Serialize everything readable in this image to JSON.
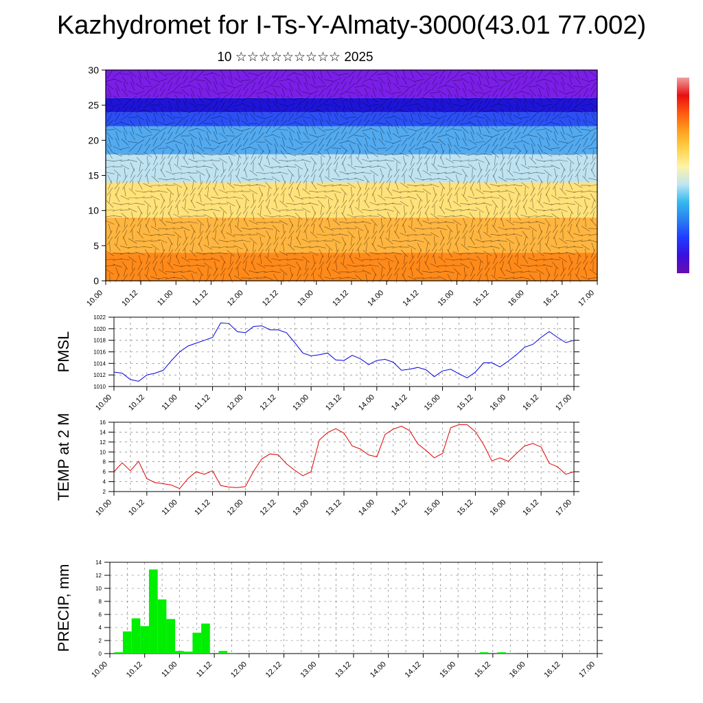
{
  "title": "Kazhydromet for I-Ts-Y-Almaty-3000(43.01 77.002)",
  "subtitle": "10 ☆☆☆☆☆☆☆☆☆ 2025",
  "time_labels": [
    "10.00",
    "10.12",
    "11.00",
    "11.12",
    "12.00",
    "12.12",
    "13.00",
    "13.12",
    "14.00",
    "14.12",
    "15.00",
    "15.12",
    "16.00",
    "16.12",
    "17.00"
  ],
  "colorbar_colors": [
    "#6a0dad",
    "#3a10e0",
    "#1f3cff",
    "#2a7ff0",
    "#35b8ef",
    "#bfe6f2",
    "#fff3a8",
    "#ffd24a",
    "#ffa020",
    "#ff5a10",
    "#e81010",
    "#f0a0a0"
  ],
  "chart_data": [
    {
      "type": "heatmap",
      "name": "cross_section",
      "ylim": [
        0,
        30
      ],
      "y_ticks": [
        0,
        5,
        10,
        15,
        20,
        25,
        30
      ],
      "x_tick_labels_ref": "time_labels",
      "bands": [
        {
          "z": [
            0,
            4
          ],
          "color": "#ff8a1a"
        },
        {
          "z": [
            4,
            9
          ],
          "color": "#ffb640"
        },
        {
          "z": [
            9,
            14
          ],
          "color": "#ffe27a"
        },
        {
          "z": [
            14,
            18
          ],
          "color": "#bfe3f0"
        },
        {
          "z": [
            18,
            22
          ],
          "color": "#52aaf0"
        },
        {
          "z": [
            22,
            24
          ],
          "color": "#2a50f5"
        },
        {
          "z": [
            24,
            26
          ],
          "color": "#1e14d8"
        },
        {
          "z": [
            26,
            30
          ],
          "color": "#7a1ee8"
        }
      ]
    },
    {
      "type": "line",
      "name": "PMSL",
      "ylabel": "PMSL",
      "color": "#0000dd",
      "ylim": [
        1010,
        1022
      ],
      "y_ticks": [
        1010,
        1012,
        1014,
        1016,
        1018,
        1020,
        1022
      ],
      "x_tick_labels_ref": "time_labels",
      "x": [
        0,
        0.125,
        0.25,
        0.375,
        0.5,
        0.625,
        0.75,
        0.875,
        1,
        1.125,
        1.25,
        1.375,
        1.5,
        1.625,
        1.75,
        1.875,
        2,
        2.125,
        2.25,
        2.375,
        2.5,
        2.625,
        2.75,
        2.875,
        3,
        3.125,
        3.25,
        3.375,
        3.5,
        3.625,
        3.75,
        3.875,
        4,
        4.125,
        4.25,
        4.375,
        4.5,
        4.625,
        4.75,
        4.875,
        5,
        5.125,
        5.25,
        5.375,
        5.5,
        5.625,
        5.75,
        5.875,
        6,
        6.125,
        6.25,
        6.375,
        6.5,
        6.625,
        6.75,
        6.875,
        7
      ],
      "values": [
        1012.5,
        1012.3,
        1011.2,
        1010.9,
        1012.0,
        1012.3,
        1012.8,
        1014.5,
        1016.0,
        1017.0,
        1017.5,
        1018.0,
        1018.5,
        1021.0,
        1020.9,
        1019.5,
        1019.3,
        1020.4,
        1020.5,
        1019.8,
        1019.8,
        1019.3,
        1017.6,
        1015.8,
        1015.3,
        1015.5,
        1015.8,
        1014.6,
        1014.5,
        1015.4,
        1014.8,
        1013.8,
        1014.5,
        1014.7,
        1014.2,
        1012.8,
        1013.0,
        1013.3,
        1012.9,
        1011.7,
        1012.7,
        1013.0,
        1012.2,
        1011.5,
        1012.5,
        1014.1,
        1014.1,
        1013.4,
        1014.4,
        1015.5,
        1016.8,
        1017.3,
        1018.5,
        1019.5,
        1018.5,
        1017.6,
        1018.0
      ]
    },
    {
      "type": "line",
      "name": "TEMP",
      "ylabel": "TEMP at 2 M",
      "color": "#dd0000",
      "ylim": [
        2,
        16
      ],
      "y_ticks": [
        2,
        4,
        6,
        8,
        10,
        12,
        14,
        16
      ],
      "x_tick_labels_ref": "time_labels",
      "x": [
        0,
        0.125,
        0.25,
        0.375,
        0.5,
        0.625,
        0.75,
        0.875,
        1,
        1.125,
        1.25,
        1.375,
        1.5,
        1.625,
        1.75,
        1.875,
        2,
        2.125,
        2.25,
        2.375,
        2.5,
        2.625,
        2.75,
        2.875,
        3,
        3.125,
        3.25,
        3.375,
        3.5,
        3.625,
        3.75,
        3.875,
        4,
        4.125,
        4.25,
        4.375,
        4.5,
        4.625,
        4.75,
        4.875,
        5,
        5.125,
        5.25,
        5.375,
        5.5,
        5.625,
        5.75,
        5.875,
        6,
        6.125,
        6.25,
        6.375,
        6.5,
        6.625,
        6.75,
        6.875,
        7
      ],
      "values": [
        6.0,
        7.8,
        6.2,
        8.1,
        4.6,
        3.8,
        3.6,
        3.3,
        2.6,
        4.6,
        6.0,
        5.5,
        6.2,
        3.2,
        2.9,
        2.8,
        3.0,
        6.1,
        8.6,
        9.6,
        9.4,
        7.6,
        6.3,
        5.2,
        6.0,
        12.4,
        13.9,
        14.7,
        13.8,
        11.2,
        10.6,
        9.4,
        9.0,
        13.5,
        14.6,
        15.2,
        14.3,
        11.6,
        10.3,
        8.8,
        9.7,
        14.9,
        15.5,
        15.5,
        14.1,
        11.5,
        8.2,
        8.8,
        8.1,
        9.7,
        11.2,
        11.7,
        11.0,
        7.7,
        7.0,
        5.5,
        6.0
      ]
    },
    {
      "type": "bar",
      "name": "PRECIP",
      "ylabel": "PRECIP, mm",
      "color": "#00ee00",
      "ylim": [
        0,
        14
      ],
      "y_ticks": [
        0,
        2,
        4,
        6,
        8,
        10,
        12,
        14
      ],
      "x_tick_labels_ref": "time_labels",
      "bars": [
        {
          "x": 0.125,
          "value": 0.2
        },
        {
          "x": 0.25,
          "value": 3.4
        },
        {
          "x": 0.375,
          "value": 5.4
        },
        {
          "x": 0.5,
          "value": 4.2
        },
        {
          "x": 0.625,
          "value": 12.9
        },
        {
          "x": 0.75,
          "value": 8.3
        },
        {
          "x": 0.875,
          "value": 5.3
        },
        {
          "x": 1.0,
          "value": 0.4
        },
        {
          "x": 1.125,
          "value": 0.3
        },
        {
          "x": 1.25,
          "value": 3.2
        },
        {
          "x": 1.375,
          "value": 4.6
        },
        {
          "x": 1.625,
          "value": 0.4
        },
        {
          "x": 1.75,
          "value": 0.1
        },
        {
          "x": 5.375,
          "value": 0.2
        },
        {
          "x": 5.625,
          "value": 0.2
        },
        {
          "x": 5.75,
          "value": 0.1
        }
      ]
    }
  ]
}
